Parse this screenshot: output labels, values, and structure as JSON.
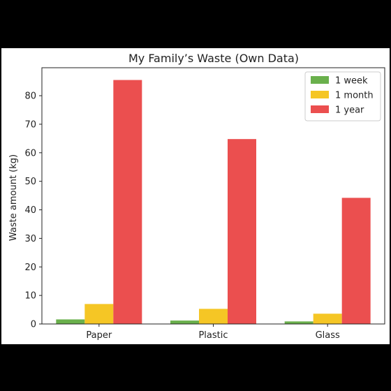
{
  "chart_data": {
    "type": "bar",
    "title": "My Family’s Waste (Own Data)",
    "xlabel": "",
    "ylabel": "Waste amount (kg)",
    "categories": [
      "Paper",
      "Plastic",
      "Glass"
    ],
    "series": [
      {
        "name": "1 week",
        "color": "#6ab04c",
        "values": [
          1.6,
          1.2,
          0.9
        ]
      },
      {
        "name": "1 month",
        "color": "#f5c625",
        "values": [
          7.0,
          5.3,
          3.6
        ]
      },
      {
        "name": "1 year",
        "color": "#eb4f4f",
        "values": [
          85.5,
          64.8,
          44.2
        ]
      }
    ],
    "ylim": [
      0,
      89.8
    ],
    "yticks": [
      0,
      10,
      20,
      30,
      40,
      50,
      60,
      70,
      80
    ],
    "grid": false,
    "legend": "top-right"
  }
}
